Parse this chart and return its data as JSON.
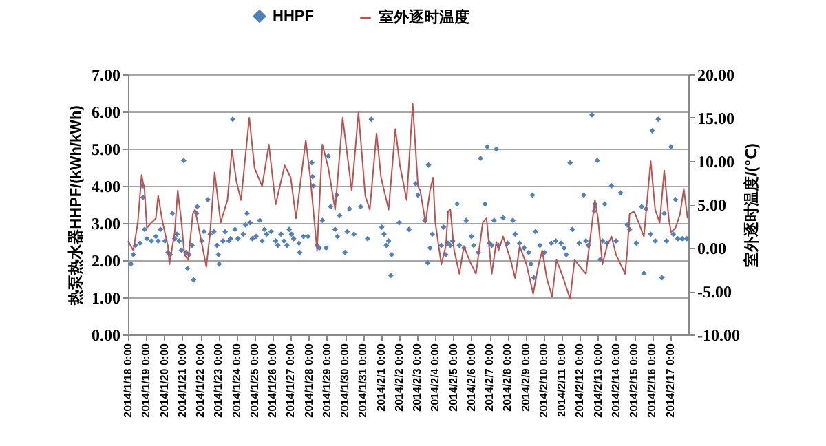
{
  "chart_data": {
    "type": "scatter",
    "ylabel": "热泵热水器HHPF/(kWh/kWh)",
    "y2label": "室外逐时温度/(℃)",
    "xlim": [
      "2014-01-18T00:00",
      "2014-02-18T00:00"
    ],
    "xticks": [
      {
        "value": "2014-01-18T00:00",
        "label": "2014/1/18 0:00"
      },
      {
        "value": "2014-01-19T00:00",
        "label": "2014/1/19 0:00"
      },
      {
        "value": "2014-01-20T00:00",
        "label": "2014/1/20 0:00"
      },
      {
        "value": "2014-01-21T00:00",
        "label": "2014/1/21 0:00"
      },
      {
        "value": "2014-01-22T00:00",
        "label": "2014/1/22 0:00"
      },
      {
        "value": "2014-01-23T00:00",
        "label": "2014/1/23 0:00"
      },
      {
        "value": "2014-01-24T00:00",
        "label": "2014/1/24 0:00"
      },
      {
        "value": "2014-01-25T00:00",
        "label": "2014/1/25 0:00"
      },
      {
        "value": "2014-01-26T00:00",
        "label": "2014/1/26 0:00"
      },
      {
        "value": "2014-01-27T00:00",
        "label": "2014/1/27 0:00"
      },
      {
        "value": "2014-01-28T00:00",
        "label": "2014/1/28 0:00"
      },
      {
        "value": "2014-01-29T00:00",
        "label": "2014/1/29 0:00"
      },
      {
        "value": "2014-01-30T00:00",
        "label": "2014/1/30 0:00"
      },
      {
        "value": "2014-01-31T00:00",
        "label": "2014/1/31 0:00"
      },
      {
        "value": "2014-02-01T00:00",
        "label": "2014/2/1 0:00"
      },
      {
        "value": "2014-02-02T00:00",
        "label": "2014/2/2 0:00"
      },
      {
        "value": "2014-02-03T00:00",
        "label": "2014/2/3 0:00"
      },
      {
        "value": "2014-02-04T00:00",
        "label": "2014/2/4 0:00"
      },
      {
        "value": "2014-02-05T00:00",
        "label": "2014/2/5 0:00"
      },
      {
        "value": "2014-02-06T00:00",
        "label": "2014/2/6 0:00"
      },
      {
        "value": "2014-02-07T00:00",
        "label": "2014/2/7 0:00"
      },
      {
        "value": "2014-02-08T00:00",
        "label": "2014/2/8 0:00"
      },
      {
        "value": "2014-02-09T00:00",
        "label": "2014/2/9 0:00"
      },
      {
        "value": "2014-02-10T00:00",
        "label": "2014/2/10 0:00"
      },
      {
        "value": "2014-02-11T00:00",
        "label": "2014/2/11 0:00"
      },
      {
        "value": "2014-02-12T00:00",
        "label": "2014/2/12 0:00"
      },
      {
        "value": "2014-02-13T00:00",
        "label": "2014/2/13 0:00"
      },
      {
        "value": "2014-02-14T00:00",
        "label": "2014/2/14 0:00"
      },
      {
        "value": "2014-02-15T00:00",
        "label": "2014/2/15 0:00"
      },
      {
        "value": "2014-02-16T00:00",
        "label": "2014/2/16 0:00"
      },
      {
        "value": "2014-02-17T00:00",
        "label": "2014/2/17 0:00"
      }
    ],
    "ylim": [
      0,
      7
    ],
    "yticks": [
      {
        "value": 0,
        "label": "0.00"
      },
      {
        "value": 1,
        "label": "1.00"
      },
      {
        "value": 2,
        "label": "2.00"
      },
      {
        "value": 3,
        "label": "3.00"
      },
      {
        "value": 4,
        "label": "4.00"
      },
      {
        "value": 5,
        "label": "5.00"
      },
      {
        "value": 6,
        "label": "6.00"
      },
      {
        "value": 7,
        "label": "7.00"
      }
    ],
    "y2lim": [
      -10,
      20
    ],
    "y2ticks": [
      {
        "value": -10,
        "label": "-10.00"
      },
      {
        "value": -5,
        "label": "-5.00"
      },
      {
        "value": 0,
        "label": "0.00"
      },
      {
        "value": 5,
        "label": "5.00"
      },
      {
        "value": 10,
        "label": "10.00"
      },
      {
        "value": 15,
        "label": "15.00"
      },
      {
        "value": 20,
        "label": "20.00"
      }
    ],
    "grid": "y",
    "legend": "top",
    "series": [
      {
        "name": "HHPF",
        "type": "scatter",
        "marker": "diamond",
        "color": "#4f81bd",
        "x": [
          "2014-01-18T04:00",
          "2014-01-18T07:00",
          "2014-01-18T10:00",
          "2014-01-18T16:00",
          "2014-01-18T19:00",
          "2014-01-18T20:00",
          "2014-01-18T22:00",
          "2014-01-19T01:00",
          "2014-01-19T07:00",
          "2014-01-19T13:00",
          "2014-01-19T16:00",
          "2014-01-19T19:00",
          "2014-01-20T01:00",
          "2014-01-20T05:00",
          "2014-01-20T08:00",
          "2014-01-20T11:00",
          "2014-01-20T14:00",
          "2014-01-20T17:00",
          "2014-01-20T20:00",
          "2014-01-20T23:00",
          "2014-01-21T02:00",
          "2014-01-21T05:00",
          "2014-01-21T07:00",
          "2014-01-21T09:00",
          "2014-01-21T13:00",
          "2014-01-21T15:00",
          "2014-01-21T19:00",
          "2014-01-21T20:00",
          "2014-01-22T02:00",
          "2014-01-22T05:00",
          "2014-01-22T10:00",
          "2014-01-22T13:00",
          "2014-01-22T18:00",
          "2014-01-22T22:00",
          "2014-01-23T00:00",
          "2014-01-23T01:00",
          "2014-01-23T06:00",
          "2014-01-23T09:00",
          "2014-01-23T14:00",
          "2014-01-23T16:00",
          "2014-01-23T19:00",
          "2014-01-23T22:00",
          "2014-01-24T02:00",
          "2014-01-24T09:00",
          "2014-01-24T12:00",
          "2014-01-24T14:00",
          "2014-01-24T18:00",
          "2014-01-24T21:00",
          "2014-01-25T02:00",
          "2014-01-25T07:00",
          "2014-01-25T10:00",
          "2014-01-25T13:00",
          "2014-01-25T16:00",
          "2014-01-25T22:00",
          "2014-01-26T04:00",
          "2014-01-26T07:00",
          "2014-01-26T11:00",
          "2014-01-26T15:00",
          "2014-01-26T19:00",
          "2014-01-26T22:00",
          "2014-01-27T01:00",
          "2014-01-27T04:00",
          "2014-01-27T11:00",
          "2014-01-27T12:00",
          "2014-01-27T17:00",
          "2014-01-27T23:00",
          "2014-01-28T04:00",
          "2014-01-28T05:00",
          "2014-01-28T06:00",
          "2014-01-28T11:00",
          "2014-01-28T14:00",
          "2014-01-28T18:00",
          "2014-01-28T23:00",
          "2014-01-29T02:00",
          "2014-01-29T05:00",
          "2014-01-29T11:00",
          "2014-01-29T13:00",
          "2014-01-29T14:00",
          "2014-01-29T17:00",
          "2014-01-30T00:00",
          "2014-01-30T03:00",
          "2014-01-30T06:00",
          "2014-01-30T12:00",
          "2014-01-30T21:00",
          "2014-01-31T06:00",
          "2014-01-31T11:00",
          "2014-02-01T01:00",
          "2014-02-01T04:00",
          "2014-02-01T07:00",
          "2014-02-01T10:00",
          "2014-02-01T13:00",
          "2014-02-01T14:00",
          "2014-02-02T00:00",
          "2014-02-02T13:00",
          "2014-02-02T22:00",
          "2014-02-03T01:00",
          "2014-02-03T10:00",
          "2014-02-03T14:00",
          "2014-02-03T15:00",
          "2014-02-03T17:00",
          "2014-02-03T20:00",
          "2014-02-04T08:00",
          "2014-02-04T11:00",
          "2014-02-04T14:00",
          "2014-02-04T17:00",
          "2014-02-04T20:00",
          "2014-02-04T23:00",
          "2014-02-05T05:00",
          "2014-02-05T08:00",
          "2014-02-05T14:00",
          "2014-02-05T17:00",
          "2014-02-06T00:00",
          "2014-02-06T03:00",
          "2014-02-06T09:00",
          "2014-02-06T12:00",
          "2014-02-06T18:00",
          "2014-02-06T21:00",
          "2014-02-07T00:00",
          "2014-02-07T03:00",
          "2014-02-07T06:00",
          "2014-02-07T09:00",
          "2014-02-07T12:00",
          "2014-02-07T18:00",
          "2014-02-08T00:00",
          "2014-02-08T07:00",
          "2014-02-08T10:00",
          "2014-02-08T16:00",
          "2014-02-08T22:00",
          "2014-02-09T04:00",
          "2014-02-09T07:00",
          "2014-02-09T09:00",
          "2014-02-09T11:00",
          "2014-02-09T13:00",
          "2014-02-09T19:00",
          "2014-02-10T01:00",
          "2014-02-10T10:00",
          "2014-02-10T16:00",
          "2014-02-10T23:00",
          "2014-02-11T03:00",
          "2014-02-11T06:00",
          "2014-02-11T11:00",
          "2014-02-11T14:00",
          "2014-02-11T23:00",
          "2014-02-12T05:00",
          "2014-02-12T08:00",
          "2014-02-12T11:00",
          "2014-02-12T16:00",
          "2014-02-12T19:00",
          "2014-02-12T20:00",
          "2014-02-12T23:00",
          "2014-02-13T03:00",
          "2014-02-13T06:00",
          "2014-02-13T09:00",
          "2014-02-13T12:00",
          "2014-02-13T18:00",
          "2014-02-14T00:00",
          "2014-02-14T06:00",
          "2014-02-14T15:00",
          "2014-02-14T18:00",
          "2014-02-15T03:00",
          "2014-02-15T10:00",
          "2014-02-15T13:00",
          "2014-02-15T16:00",
          "2014-02-15T22:00",
          "2014-02-16T00:00",
          "2014-02-16T04:00",
          "2014-02-16T08:00",
          "2014-02-16T13:00",
          "2014-02-16T16:00",
          "2014-02-16T19:00",
          "2014-02-17T01:00",
          "2014-02-17T04:00",
          "2014-02-17T07:00",
          "2014-02-17T10:00",
          "2014-02-17T16:00",
          "2014-02-17T22:00"
        ],
        "values": [
          1.9,
          2.15,
          2.4,
          2.46,
          4.0,
          3.69,
          2.83,
          2.58,
          2.52,
          2.64,
          2.52,
          2.83,
          2.52,
          2.21,
          2.15,
          3.26,
          2.58,
          2.7,
          2.52,
          2.27,
          4.68,
          2.21,
          1.78,
          2.15,
          2.4,
          1.47,
          3.26,
          3.44,
          2.52,
          2.77,
          3.63,
          2.7,
          2.77,
          2.4,
          2.15,
          1.9,
          2.52,
          2.77,
          2.52,
          2.58,
          5.79,
          2.83,
          2.58,
          2.7,
          2.95,
          3.26,
          3.01,
          2.58,
          2.64,
          3.07,
          2.52,
          2.83,
          2.7,
          2.77,
          2.52,
          2.4,
          2.7,
          2.52,
          2.4,
          2.83,
          2.7,
          2.58,
          2.46,
          2.21,
          2.64,
          2.64,
          4.62,
          4.25,
          4.0,
          2.4,
          2.33,
          3.07,
          2.33,
          4.8,
          3.44,
          2.83,
          3.75,
          2.64,
          3.2,
          2.21,
          2.77,
          3.38,
          2.7,
          3.44,
          2.58,
          5.79,
          2.89,
          2.7,
          2.4,
          2.52,
          1.59,
          2.15,
          3.01,
          2.83,
          4.06,
          3.75,
          3.07,
          1.93,
          4.56,
          2.33,
          2.7,
          2.4,
          2.89,
          2.15,
          2.46,
          2.4,
          2.52,
          3.51,
          2.4,
          2.33,
          3.07,
          2.64,
          2.4,
          2.21,
          4.74,
          3.51,
          5.05,
          2.46,
          2.4,
          3.07,
          4.99,
          2.4,
          3.14,
          2.46,
          3.07,
          2.7,
          2.46,
          2.33,
          2.21,
          1.9,
          3.75,
          1.53,
          2.77,
          2.4,
          2.21,
          2.46,
          2.52,
          2.46,
          2.33,
          2.15,
          4.62,
          2.83,
          2.46,
          3.75,
          2.52,
          2.4,
          5.91,
          3.32,
          3.51,
          4.68,
          2.02,
          2.52,
          3.51,
          2.46,
          4.0,
          2.52,
          3.81,
          2.95,
          2.83,
          2.46,
          3.44,
          1.65,
          3.38,
          2.7,
          5.48,
          2.52,
          5.79,
          1.53,
          3.26,
          2.52,
          5.05,
          2.7,
          3.63,
          2.58,
          2.58,
          2.58
        ]
      },
      {
        "name": "室外逐时温度",
        "type": "line",
        "axis": "y2",
        "color": "#c0504d",
        "x": [
          "2014-01-18T00:00",
          "2014-01-18T07:00",
          "2014-01-18T13:00",
          "2014-01-18T18:00",
          "2014-01-18T22:00",
          "2014-01-19T01:00",
          "2014-01-19T07:00",
          "2014-01-19T13:00",
          "2014-01-19T16:00",
          "2014-01-19T22:00",
          "2014-01-20T05:00",
          "2014-01-20T07:00",
          "2014-01-20T14:00",
          "2014-01-20T18:00",
          "2014-01-20T23:00",
          "2014-01-21T03:00",
          "2014-01-21T08:00",
          "2014-01-21T14:00",
          "2014-01-21T17:00",
          "2014-01-21T23:00",
          "2014-01-22T08:00",
          "2014-01-22T13:00",
          "2014-01-22T19:00",
          "2014-01-23T03:00",
          "2014-01-23T12:00",
          "2014-01-23T18:00",
          "2014-01-24T00:00",
          "2014-01-24T06:00",
          "2014-01-24T17:00",
          "2014-01-25T00:00",
          "2014-01-25T10:00",
          "2014-01-25T19:00",
          "2014-01-26T04:00",
          "2014-01-26T16:00",
          "2014-01-27T00:00",
          "2014-01-27T07:00",
          "2014-01-27T20:00",
          "2014-01-28T02:00",
          "2014-01-28T11:00",
          "2014-01-28T18:00",
          "2014-01-29T02:00",
          "2014-01-29T11:00",
          "2014-01-29T21:00",
          "2014-01-30T03:00",
          "2014-01-30T09:00",
          "2014-01-30T18:00",
          "2014-01-31T03:00",
          "2014-01-31T09:00",
          "2014-01-31T18:00",
          "2014-02-01T00:00",
          "2014-02-01T10:00",
          "2014-02-01T19:00",
          "2014-02-02T01:00",
          "2014-02-02T10:00",
          "2014-02-02T18:00",
          "2014-02-03T01:00",
          "2014-02-03T04:00",
          "2014-02-03T11:00",
          "2014-02-03T17:00",
          "2014-02-03T21:00",
          "2014-02-04T00:00",
          "2014-02-04T08:00",
          "2014-02-04T14:00",
          "2014-02-04T17:00",
          "2014-02-04T20:00",
          "2014-02-05T01:00",
          "2014-02-05T08:00",
          "2014-02-05T14:00",
          "2014-02-05T22:00",
          "2014-02-06T06:00",
          "2014-02-06T15:00",
          "2014-02-06T20:00",
          "2014-02-07T03:00",
          "2014-02-07T09:00",
          "2014-02-07T12:00",
          "2014-02-07T18:00",
          "2014-02-08T04:00",
          "2014-02-08T10:00",
          "2014-02-08T16:00",
          "2014-02-09T01:00",
          "2014-02-09T10:00",
          "2014-02-09T16:00",
          "2014-02-09T22:00",
          "2014-02-10T04:00",
          "2014-02-10T11:00",
          "2014-02-10T17:00",
          "2014-02-11T02:00",
          "2014-02-11T11:00",
          "2014-02-11T17:00",
          "2014-02-12T02:00",
          "2014-02-12T08:00",
          "2014-02-12T14:00",
          "2014-02-12T20:00",
          "2014-02-13T00:00",
          "2014-02-13T06:00",
          "2014-02-13T12:00",
          "2014-02-13T18:00",
          "2014-02-14T00:00",
          "2014-02-14T06:00",
          "2014-02-14T12:00",
          "2014-02-14T15:00",
          "2014-02-14T18:00",
          "2014-02-15T00:00",
          "2014-02-15T06:00",
          "2014-02-15T13:00",
          "2014-02-15T22:00",
          "2014-02-16T04:00",
          "2014-02-16T10:00",
          "2014-02-16T16:00",
          "2014-02-16T22:00",
          "2014-02-17T01:00",
          "2014-02-17T07:00",
          "2014-02-17T13:00",
          "2014-02-17T18:00",
          "2014-02-17T23:00"
        ],
        "values": [
          0.8,
          -0.3,
          2.9,
          8.4,
          6.6,
          2.3,
          2.9,
          3.4,
          6.0,
          2.9,
          0.2,
          -1.9,
          1.8,
          6.6,
          2.9,
          -0.8,
          -1.4,
          3.9,
          4.4,
          1.8,
          -2.2,
          1.8,
          8.7,
          2.9,
          5.5,
          11.3,
          7.6,
          5.5,
          15.0,
          9.2,
          7.1,
          11.9,
          5.0,
          9.5,
          8.1,
          3.4,
          12.4,
          8.1,
          -0.3,
          11.9,
          9.2,
          4.4,
          15.0,
          10.8,
          6.6,
          15.6,
          6.0,
          4.4,
          13.2,
          8.1,
          4.4,
          13.7,
          9.5,
          5.5,
          16.6,
          7.1,
          6.6,
          2.9,
          6.6,
          8.1,
          2.9,
          -1.9,
          0.2,
          4.2,
          4.4,
          -0.3,
          -3.0,
          0.2,
          -1.6,
          -3.0,
          2.9,
          3.4,
          -3.0,
          0.7,
          -0.3,
          1.3,
          -1.4,
          -3.5,
          0.2,
          -1.9,
          -5.3,
          -2.4,
          -0.3,
          -3.5,
          -5.6,
          -1.4,
          -3.5,
          -5.9,
          -1.4,
          -2.4,
          -3.0,
          1.3,
          5.5,
          3.4,
          -1.9,
          0.2,
          1.3,
          -0.8,
          -1.9,
          -3.0,
          -0.3,
          3.9,
          4.2,
          2.9,
          1.3,
          10.0,
          4.4,
          2.9,
          8.9,
          3.4,
          1.8,
          2.3,
          3.9,
          6.8,
          3.4
        ]
      }
    ]
  }
}
